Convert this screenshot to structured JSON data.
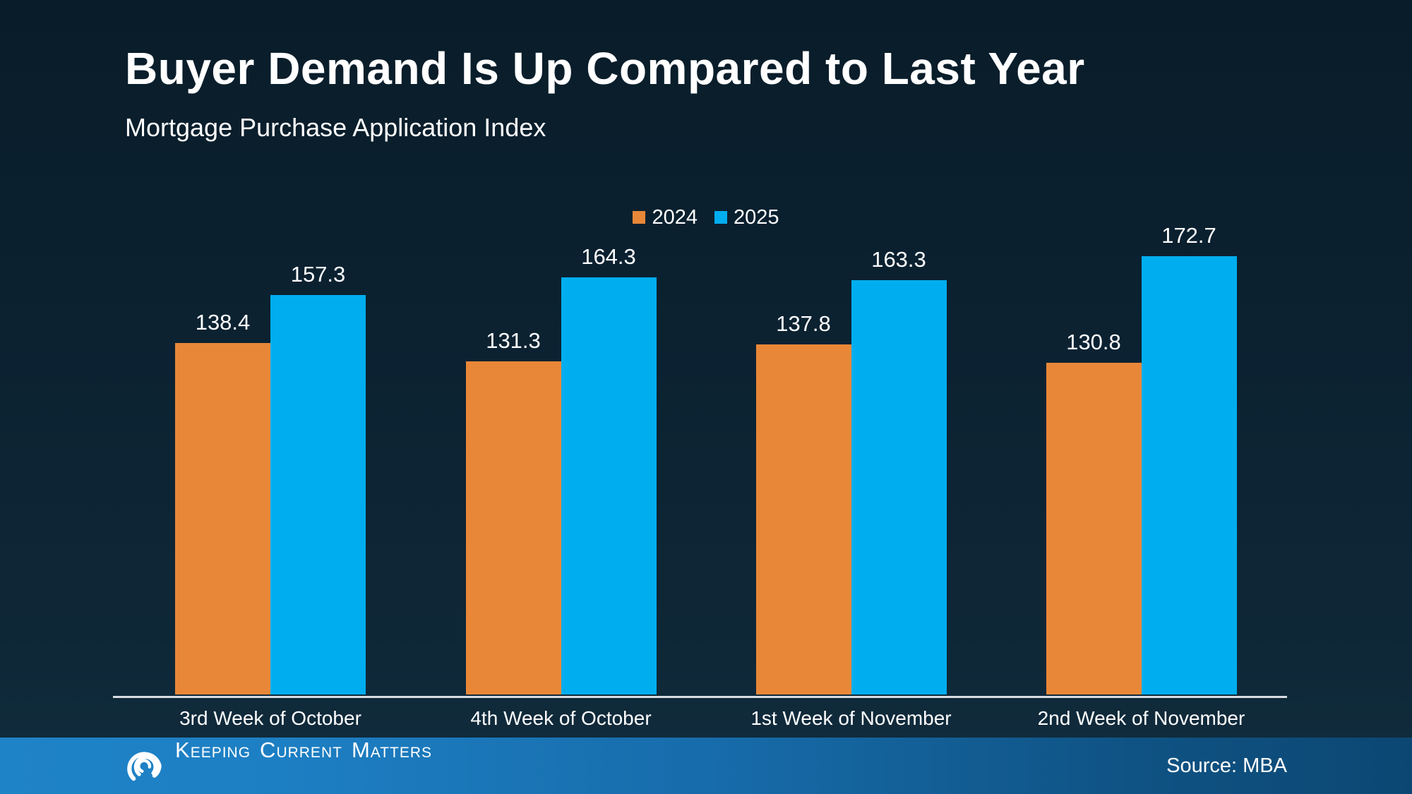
{
  "slide": {
    "title": "Buyer Demand Is Up Compared to Last Year",
    "subtitle": "Mortgage Purchase Application Index",
    "source_label": "Source: MBA",
    "brand": {
      "name": "Keeping Current Matters",
      "words": [
        "Keeping",
        "Current",
        "Matters"
      ]
    }
  },
  "colors": {
    "series_2024_orange": "#e98738",
    "series_2025_blue": "#00aeef",
    "axis_line": "#d9dde2",
    "text": "#ffffff",
    "background_top": "#091c29",
    "background_bottom": "#112d3e",
    "footer_gradient_left": "#1f83c7",
    "footer_gradient_right": "#0c4773"
  },
  "chart_data": {
    "type": "bar",
    "title": "Buyer Demand Is Up Compared to Last Year",
    "subtitle": "Mortgage Purchase Application Index",
    "categories": [
      "3rd Week of October",
      "4th Week of October",
      "1st Week of November",
      "2nd Week of November"
    ],
    "series": [
      {
        "name": "2024",
        "color": "#e98738",
        "values": [
          138.4,
          131.3,
          137.8,
          130.8
        ]
      },
      {
        "name": "2025",
        "color": "#00aeef",
        "values": [
          157.3,
          164.3,
          163.3,
          172.7
        ]
      }
    ],
    "ylabel": "",
    "xlabel": "",
    "ylim": [
      0,
      190
    ],
    "grid": false,
    "y_axis_ticks_visible": false,
    "legend_position": "top-center",
    "value_labels": true
  }
}
